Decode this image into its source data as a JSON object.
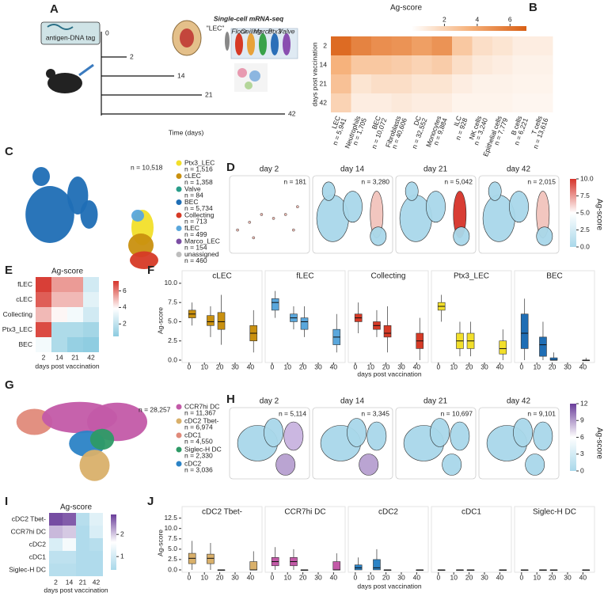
{
  "A": {
    "label": "A",
    "tag": "antigen-DNA tag",
    "seq_title": "Single-cell mRNA-seq",
    "seq_input": "\"LEC\"",
    "subtypes": [
      "Floor",
      "Ceiling",
      "Marco",
      "Ptx3",
      "Valve"
    ],
    "days": [
      0,
      2,
      14,
      21,
      42
    ],
    "xlabel": "Time (days)"
  },
  "B": {
    "label": "B",
    "colorbar_title": "Ag-score",
    "clim": [
      0,
      7
    ],
    "cticks": [
      2,
      4,
      6
    ],
    "colors": [
      "#ffffff",
      "#f6b27c",
      "#d95f14"
    ],
    "ylabel": "days post vaccination",
    "rows": [
      2,
      14,
      21,
      42
    ],
    "columns": [
      {
        "name": "LEC",
        "n": "n = 5,941"
      },
      {
        "name": "Neutrophils",
        "n": "n = 1,705"
      },
      {
        "name": "BEC",
        "n": "n = 10,072"
      },
      {
        "name": "Fibroblasts",
        "n": "n = 40,606"
      },
      {
        "name": "DC",
        "n": "n = 32,552"
      },
      {
        "name": "Monocytes",
        "n": "n = 9,884"
      },
      {
        "name": "ILC",
        "n": "n = 928"
      },
      {
        "name": "NK cells",
        "n": "n = 3,240"
      },
      {
        "name": "Epithelial cells",
        "n": "n = 7,779"
      },
      {
        "name": "B cells",
        "n": "n = 6,221"
      },
      {
        "name": "T cells",
        "n": "n = 13,616"
      }
    ],
    "values": [
      [
        6.5,
        5.5,
        5.0,
        4.8,
        4.3,
        4.8,
        2.5,
        1.5,
        1.2,
        0.8,
        0.8
      ],
      [
        3.5,
        2.5,
        2.5,
        2.3,
        2.0,
        2.3,
        1.5,
        1.0,
        0.8,
        0.6,
        0.6
      ],
      [
        2.8,
        1.2,
        1.5,
        1.5,
        1.2,
        1.2,
        0.8,
        0.6,
        0.6,
        0.5,
        0.5
      ],
      [
        2.0,
        0.8,
        0.8,
        1.0,
        0.8,
        0.8,
        0.5,
        0.5,
        0.5,
        0.4,
        0.4
      ]
    ]
  },
  "C": {
    "label": "C",
    "n": "n = 10,518",
    "legend": [
      {
        "name": "Ptx3_LEC",
        "n": "n = 1,516",
        "color": "#f2df2a"
      },
      {
        "name": "cLEC",
        "n": "n = 1,358",
        "color": "#c9900f"
      },
      {
        "name": "Valve",
        "n": "n = 84",
        "color": "#2a9d8a"
      },
      {
        "name": "BEC",
        "n": "n = 5,734",
        "color": "#1f6eb5"
      },
      {
        "name": "Collecting",
        "n": "n = 713",
        "color": "#d63a26"
      },
      {
        "name": "fLEC",
        "n": "n = 499",
        "color": "#5aa7dc"
      },
      {
        "name": "Marco_LEC",
        "n": "n = 154",
        "color": "#7b4ea3"
      },
      {
        "name": "unassigned",
        "n": "n = 460",
        "color": "#bdbdbd"
      }
    ]
  },
  "D": {
    "label": "D",
    "colorbar_title": "Ag-score",
    "clim": [
      0,
      10
    ],
    "colors": [
      "#a9d8ea",
      "#ffffff",
      "#d6332a"
    ],
    "cticks": [
      {
        "value": 0,
        "label": "0.0"
      },
      2.5,
      {
        "value": 5,
        "label": "5.0"
      },
      7.5,
      {
        "value": 10,
        "label": "10.0"
      }
    ],
    "panels": [
      {
        "title": "day 2",
        "n": "n = 181"
      },
      {
        "title": "day 14",
        "n": "n = 3,280"
      },
      {
        "title": "day 21",
        "n": "n = 5,042"
      },
      {
        "title": "day 42",
        "n": "n = 2,015"
      }
    ]
  },
  "E": {
    "label": "E",
    "title": "Ag-score",
    "xlabel": "days post vaccination",
    "clim": [
      0.5,
      7.2
    ],
    "cticks": [
      2,
      4,
      6
    ],
    "colors": [
      "#8ccbe0",
      "#ffffff",
      "#d6332a"
    ],
    "rows": [
      "fLEC",
      "cLEC",
      "Collecting",
      "Ptx3_LEC",
      "BEC"
    ],
    "columns": [
      2,
      14,
      21,
      42
    ],
    "values": [
      [
        7.0,
        5.5,
        5.5,
        2.5
      ],
      [
        6.5,
        5.0,
        5.0,
        3.0
      ],
      [
        5.0,
        4.0,
        3.5,
        2.5
      ],
      [
        6.8,
        1.5,
        1.5,
        1.2
      ],
      [
        3.5,
        1.5,
        0.8,
        0.6
      ]
    ]
  },
  "F": {
    "label": "F",
    "ylabel": "Ag-score",
    "xlabel": "days post vaccination",
    "ylim": [
      0,
      10.3
    ],
    "yticks": [
      {
        "value": 0,
        "label": "0.0"
      },
      2.5,
      {
        "value": 5,
        "label": "5.0"
      },
      7.5,
      {
        "value": 10,
        "label": "10.0"
      }
    ],
    "xlim": [
      -3,
      46
    ],
    "xticks": [
      0,
      10,
      20,
      30,
      40
    ],
    "x": [
      2,
      14,
      21,
      42
    ],
    "panels": [
      {
        "title": "cLEC",
        "color": "#c9900f",
        "boxes": [
          [
            4.5,
            5.5,
            6.0,
            6.5,
            7.5
          ],
          [
            3.0,
            4.5,
            5.0,
            5.8,
            7.0
          ],
          [
            2.0,
            4.0,
            5.0,
            6.2,
            8.5
          ],
          [
            1.0,
            2.5,
            3.5,
            4.5,
            6.5
          ]
        ]
      },
      {
        "title": "fLEC",
        "color": "#5aa7dc",
        "boxes": [
          [
            5.5,
            6.5,
            7.5,
            8.0,
            9.0
          ],
          [
            4.0,
            5.0,
            5.5,
            6.0,
            7.0
          ],
          [
            3.0,
            4.0,
            5.0,
            5.5,
            7.0
          ],
          [
            1.0,
            2.0,
            3.0,
            4.0,
            6.0
          ]
        ]
      },
      {
        "title": "Collecting",
        "color": "#d63a26",
        "boxes": [
          [
            3.5,
            5.0,
            5.5,
            6.0,
            7.5
          ],
          [
            3.0,
            4.0,
            4.5,
            5.0,
            6.5
          ],
          [
            1.0,
            3.0,
            3.5,
            4.5,
            7.0
          ],
          [
            0,
            1.5,
            2.5,
            3.5,
            5.5
          ]
        ]
      },
      {
        "title": "Ptx3_LEC",
        "color": "#f2df2a",
        "boxes": [
          [
            5.0,
            6.5,
            7.0,
            7.5,
            8.5
          ],
          [
            0.5,
            1.5,
            2.5,
            3.5,
            5.0
          ],
          [
            0.5,
            1.5,
            2.5,
            3.5,
            5.0
          ],
          [
            0,
            0.8,
            1.5,
            2.5,
            4.0
          ]
        ]
      },
      {
        "title": "BEC",
        "color": "#1f6eb5",
        "boxes": [
          [
            0,
            1.5,
            3.5,
            6.0,
            8.0
          ],
          [
            0,
            0.5,
            2.0,
            3.0,
            5.0
          ],
          [
            0,
            0,
            0,
            0.3,
            1.0
          ],
          [
            0,
            0,
            0,
            0,
            0.3
          ]
        ]
      }
    ]
  },
  "G": {
    "label": "G",
    "n": "n = 28,257",
    "legend": [
      {
        "name": "CCR7hi DC",
        "n": "n = 11,367",
        "color": "#c35aa8"
      },
      {
        "name": "cDC2 Tbet-",
        "n": "n = 6,974",
        "color": "#d9b06a"
      },
      {
        "name": "cDC1",
        "n": "n = 4,550",
        "color": "#e08a7a"
      },
      {
        "name": "Siglec-H DC",
        "n": "n = 2,330",
        "color": "#2e9a66"
      },
      {
        "name": "cDC2",
        "n": "n = 3,036",
        "color": "#2b83c6"
      }
    ]
  },
  "H": {
    "label": "H",
    "colorbar_title": "Ag-score",
    "clim": [
      0,
      12
    ],
    "colors": [
      "#a9d8ea",
      "#ffffff",
      "#6a3d9a"
    ],
    "cticks": [
      0,
      3,
      6,
      9,
      12
    ],
    "panels": [
      {
        "title": "day 2",
        "n": "n = 5,114"
      },
      {
        "title": "day 14",
        "n": "n = 3,345"
      },
      {
        "title": "day 21",
        "n": "n = 10,697"
      },
      {
        "title": "day 42",
        "n": "n = 9,101"
      }
    ]
  },
  "I": {
    "label": "I",
    "title": "Ag-score",
    "xlabel": "days post vaccination",
    "clim": [
      0.4,
      2.9
    ],
    "cticks": [
      1,
      2
    ],
    "colors": [
      "#a9d8ea",
      "#ffffff",
      "#6a3d9a"
    ],
    "rows": [
      "cDC2 Tbet-",
      "CCR7hi DC",
      "cDC2",
      "cDC1",
      "Siglec-H DC"
    ],
    "columns": [
      2,
      14,
      21,
      42
    ],
    "values": [
      [
        2.8,
        2.7,
        0.6,
        1.2
      ],
      [
        2.1,
        2.0,
        0.5,
        1.1
      ],
      [
        1.1,
        1.5,
        0.5,
        0.6
      ],
      [
        0.7,
        0.7,
        0.5,
        0.5
      ],
      [
        0.6,
        0.6,
        0.5,
        0.5
      ]
    ]
  },
  "J": {
    "label": "J",
    "ylabel": "Ag-score",
    "xlabel": "days post vaccination",
    "ylim": [
      0,
      13
    ],
    "yticks": [
      {
        "value": 0,
        "label": "0.0"
      },
      2.5,
      {
        "value": 5,
        "label": "5.0"
      },
      7.5,
      {
        "value": 10,
        "label": "10.0"
      },
      12.5
    ],
    "xlim": [
      -3,
      46
    ],
    "xticks": [
      0,
      10,
      20,
      30,
      40
    ],
    "x": [
      2,
      14,
      21,
      42
    ],
    "panels": [
      {
        "title": "cDC2 Tbet-",
        "color": "#d9b06a",
        "boxes": [
          [
            0,
            1.5,
            2.8,
            4.0,
            7.0
          ],
          [
            0,
            1.5,
            2.8,
            3.8,
            6.5
          ],
          [
            0,
            0,
            0,
            0,
            0.1
          ],
          [
            0,
            0,
            0,
            2.0,
            4.5
          ]
        ]
      },
      {
        "title": "CCR7hi DC",
        "color": "#c35aa8",
        "boxes": [
          [
            0,
            1.0,
            2.0,
            3.0,
            5.5
          ],
          [
            0,
            1.0,
            2.0,
            3.0,
            5.0
          ],
          [
            0,
            0,
            0,
            0,
            0.1
          ],
          [
            0,
            0,
            0,
            2.0,
            4.0
          ]
        ]
      },
      {
        "title": "cDC2",
        "color": "#2b83c6",
        "boxes": [
          [
            0,
            0,
            0.5,
            1.2,
            3.0
          ],
          [
            0,
            0,
            0.5,
            2.5,
            5.0
          ],
          [
            0,
            0,
            0,
            0,
            0.1
          ],
          [
            0,
            0,
            0,
            0,
            0.1
          ]
        ]
      },
      {
        "title": "cDC1",
        "color": "#e08a7a",
        "boxes": [
          [
            0,
            0,
            0,
            0,
            0.1
          ],
          [
            0,
            0,
            0,
            0,
            0.1
          ],
          [
            0,
            0,
            0,
            0,
            0.1
          ],
          [
            0,
            0,
            0,
            0,
            0.1
          ]
        ]
      },
      {
        "title": "Siglec-H DC",
        "color": "#2e9a66",
        "boxes": [
          [
            0,
            0,
            0,
            0,
            0.1
          ],
          [
            0,
            0,
            0,
            0,
            0.1
          ],
          [
            0,
            0,
            0,
            0,
            0.1
          ],
          [
            0,
            0,
            0,
            0,
            0.1
          ]
        ]
      }
    ]
  }
}
